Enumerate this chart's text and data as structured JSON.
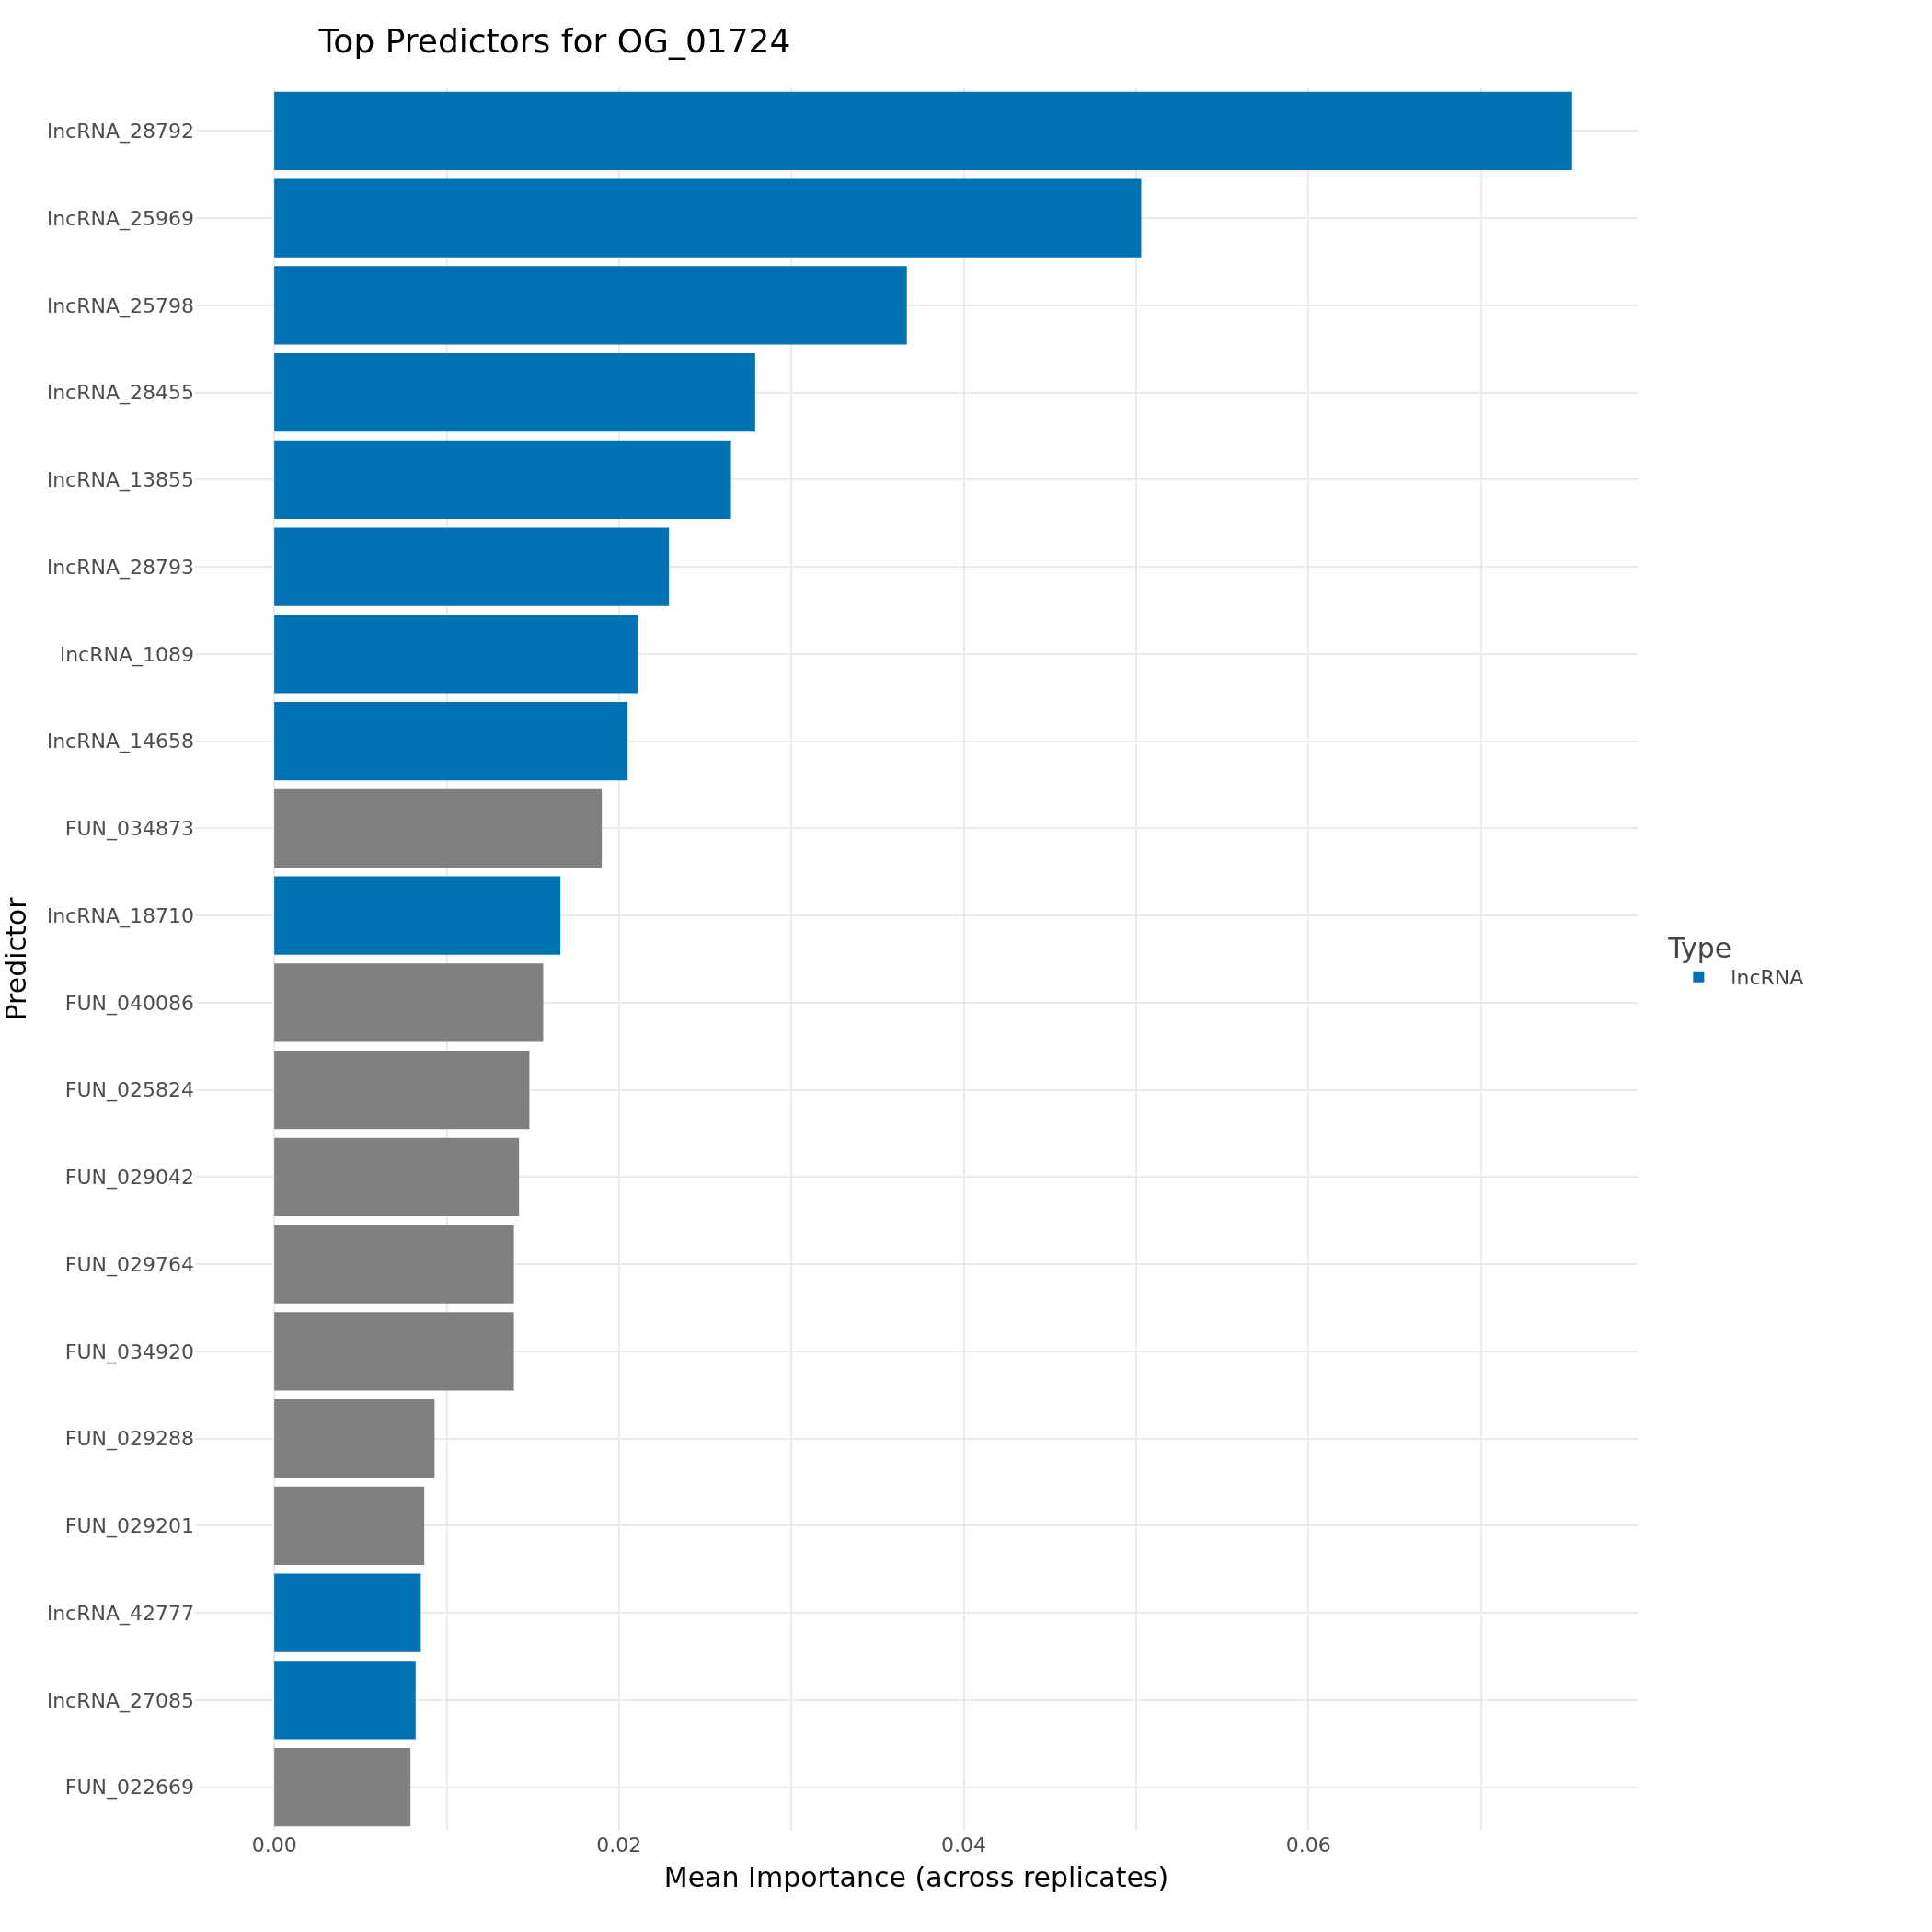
{
  "chart_data": {
    "type": "bar",
    "orientation": "horizontal",
    "title": "Top Predictors for OG_01724",
    "xlabel": "Mean Importance (across replicates)",
    "ylabel": "Predictor",
    "legend_title": "Type",
    "legend": "right",
    "grid": true,
    "categories": [
      "lncRNA_28792",
      "lncRNA_25969",
      "lncRNA_25798",
      "lncRNA_28455",
      "lncRNA_13855",
      "lncRNA_28793",
      "lncRNA_1089",
      "lncRNA_14658",
      "FUN_034873",
      "lncRNA_18710",
      "FUN_040086",
      "FUN_025824",
      "FUN_029042",
      "FUN_029764",
      "FUN_034920",
      "FUN_029288",
      "FUN_029201",
      "lncRNA_42777",
      "lncRNA_27085",
      "FUN_022669"
    ],
    "series": [
      {
        "name": "lncRNA",
        "color": "#0072b2",
        "values": [
          0.0753,
          0.0503,
          0.0367,
          0.0279,
          0.0265,
          0.0229,
          0.0211,
          0.0205,
          null,
          0.0166,
          null,
          null,
          null,
          null,
          null,
          null,
          null,
          0.0085,
          0.0082,
          null
        ]
      },
      {
        "color": "#808080",
        "values": [
          null,
          null,
          null,
          null,
          null,
          null,
          null,
          null,
          0.019,
          null,
          0.0156,
          0.0148,
          0.0142,
          0.0139,
          0.0139,
          0.0093,
          0.0087,
          null,
          null,
          0.0079
        ]
      }
    ],
    "xlim": [
      -0.0046,
      0.0791
    ],
    "xticks": [
      {
        "value": 0,
        "label": "0.00"
      },
      {
        "value": 0.01,
        "label": null
      },
      {
        "value": 0.02,
        "label": "0.02"
      },
      {
        "value": 0.03,
        "label": null
      },
      {
        "value": 0.04,
        "label": "0.04"
      },
      {
        "value": 0.05,
        "label": null
      },
      {
        "value": 0.06,
        "label": "0.06"
      },
      {
        "value": 0.07,
        "label": null
      }
    ]
  }
}
